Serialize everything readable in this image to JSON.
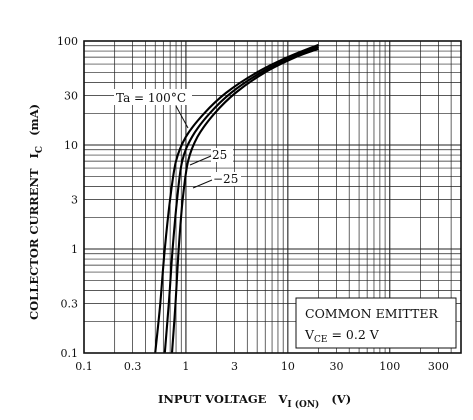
{
  "chart_data": {
    "type": "line",
    "xlabel": "INPUT VOLTAGE",
    "xlabel_symbol": "V",
    "xlabel_subscript": "I (ON)",
    "xlabel_unit": "(V)",
    "ylabel": "COLLECTOR CURRENT",
    "ylabel_symbol": "I",
    "ylabel_subscript": "C",
    "ylabel_unit": "(mA)",
    "x_scale": "log",
    "y_scale": "log",
    "xlim": [
      0.1,
      500
    ],
    "ylim": [
      0.1,
      100
    ],
    "grid": true,
    "x_ticks": [
      {
        "value": 0.1,
        "label": "0.1"
      },
      {
        "value": 0.3,
        "label": "0.3"
      },
      {
        "value": 1,
        "label": "1"
      },
      {
        "value": 3,
        "label": "3"
      },
      {
        "value": 10,
        "label": "10"
      },
      {
        "value": 30,
        "label": "30"
      },
      {
        "value": 100,
        "label": "100"
      },
      {
        "value": 300,
        "label": "300"
      }
    ],
    "y_ticks": [
      {
        "value": 0.1,
        "label": "0.1"
      },
      {
        "value": 0.3,
        "label": "0.3"
      },
      {
        "value": 1,
        "label": "1"
      },
      {
        "value": 3,
        "label": "3"
      },
      {
        "value": 10,
        "label": "10"
      },
      {
        "value": 30,
        "label": "30"
      },
      {
        "value": 100,
        "label": "100"
      }
    ],
    "series": [
      {
        "name": "Ta = 100°C",
        "x": [
          0.5,
          0.56,
          0.62,
          0.7,
          0.8,
          1.0,
          1.5,
          2.5,
          5,
          10,
          20
        ],
        "y": [
          0.1,
          0.3,
          1,
          3,
          7,
          12,
          20,
          32,
          50,
          70,
          92
        ]
      },
      {
        "name": "25",
        "x": [
          0.62,
          0.68,
          0.74,
          0.82,
          0.92,
          1.15,
          1.7,
          2.8,
          5.5,
          11,
          20
        ],
        "y": [
          0.1,
          0.3,
          1,
          3,
          7,
          12,
          20,
          32,
          50,
          70,
          88
        ]
      },
      {
        "name": "−25",
        "x": [
          0.73,
          0.79,
          0.85,
          0.93,
          1.05,
          1.3,
          1.9,
          3.1,
          6,
          12,
          20
        ],
        "y": [
          0.1,
          0.3,
          1,
          3,
          7,
          12,
          20,
          32,
          50,
          70,
          84
        ]
      }
    ],
    "legend": {
      "line1": "COMMON EMITTER",
      "line2_symbol": "V",
      "line2_subscript": "CE",
      "line2_value": " = 0.2 V"
    }
  }
}
